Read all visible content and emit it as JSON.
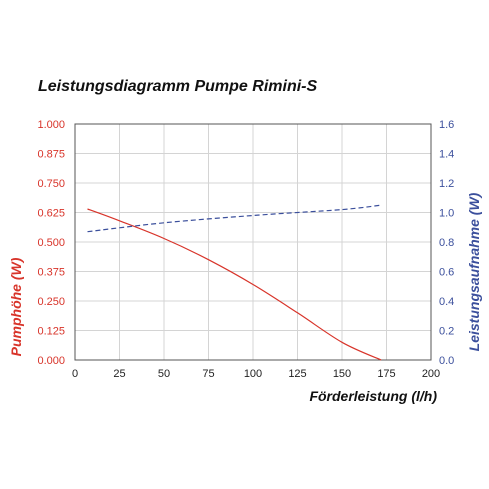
{
  "chart_data": {
    "type": "line",
    "title": "Leistungsdiagramm Pumpe Rimini-S",
    "xlabel": "Förderleistung (l/h)",
    "ylabel_left": "Pumphöhe (W)",
    "ylabel_right": "Leistungsaufnahme (W)",
    "xlim": [
      0,
      200
    ],
    "ylim_left": [
      0,
      1
    ],
    "ylim_right": [
      0,
      1.6
    ],
    "x_ticks": [
      "0",
      "25",
      "50",
      "75",
      "100",
      "125",
      "150",
      "175",
      "200"
    ],
    "y_left_ticks": [
      "0.000",
      "0.125",
      "0.250",
      "0.375",
      "0.500",
      "0.625",
      "0.750",
      "0.875",
      "1.000"
    ],
    "y_right_ticks": [
      "0.0",
      "0.2",
      "0.4",
      "0.6",
      "0.8",
      "1.0",
      "1.2",
      "1.4",
      "1.6"
    ],
    "grid": true,
    "series": [
      {
        "axis": "left",
        "style": "solid",
        "color": "#d8342a",
        "x": [
          7,
          25,
          50,
          75,
          100,
          125,
          150,
          172
        ],
        "y": [
          0.64,
          0.59,
          0.515,
          0.425,
          0.32,
          0.2,
          0.075,
          0.0
        ]
      },
      {
        "axis": "right",
        "style": "dashed",
        "color": "#3b4f9c",
        "x": [
          7,
          50,
          100,
          150,
          172
        ],
        "y": [
          0.87,
          0.93,
          0.98,
          1.02,
          1.05
        ]
      }
    ]
  }
}
